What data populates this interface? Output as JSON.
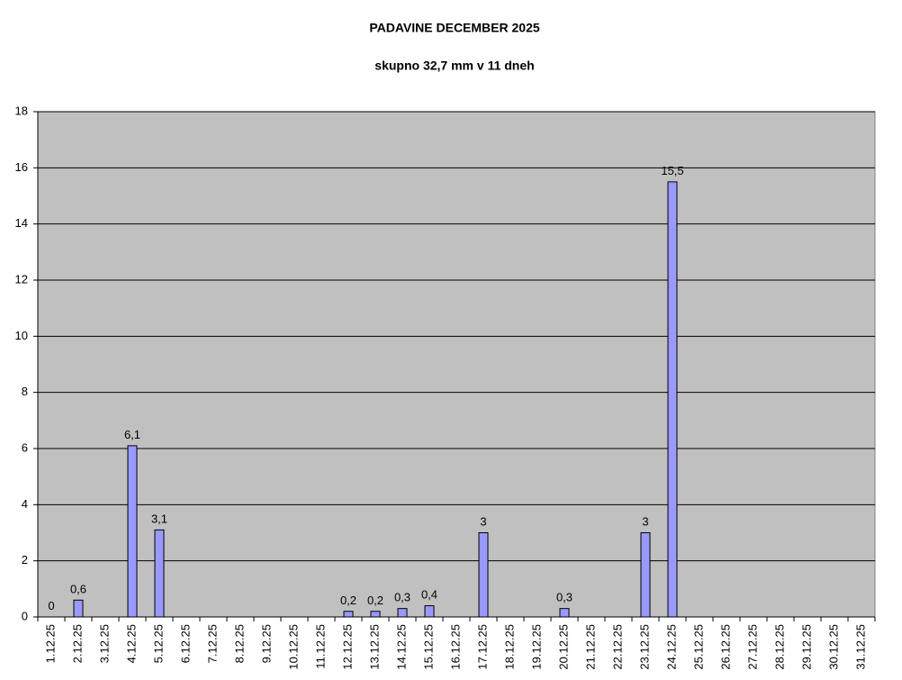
{
  "chart_data": {
    "type": "bar",
    "title": "PADAVINE DECEMBER 2025",
    "subtitle": "skupno 32,7 mm v 11 dneh",
    "categories": [
      "1.12.25",
      "2.12.25",
      "3.12.25",
      "4.12.25",
      "5.12.25",
      "6.12.25",
      "7.12.25",
      "8.12.25",
      "9.12.25",
      "10.12.25",
      "11.12.25",
      "12.12.25",
      "13.12.25",
      "14.12.25",
      "15.12.25",
      "16.12.25",
      "17.12.25",
      "18.12.25",
      "19.12.25",
      "20.12.25",
      "21.12.25",
      "22.12.25",
      "23.12.25",
      "24.12.25",
      "25.12.25",
      "26.12.25",
      "27.12.25",
      "28.12.25",
      "29.12.25",
      "30.12.25",
      "31.12.25"
    ],
    "values": [
      0,
      0.6,
      null,
      6.1,
      3.1,
      null,
      null,
      null,
      null,
      null,
      null,
      0.2,
      0.2,
      0.3,
      0.4,
      null,
      3,
      null,
      null,
      0.3,
      null,
      null,
      3,
      15.5,
      null,
      null,
      null,
      null,
      null,
      null,
      null
    ],
    "value_labels": [
      "0",
      "0,6",
      null,
      "6,1",
      "3,1",
      null,
      null,
      null,
      null,
      null,
      null,
      "0,2",
      "0,2",
      "0,3",
      "0,4",
      null,
      "3",
      null,
      null,
      "0,3",
      null,
      null,
      "3",
      "15,5",
      null,
      null,
      null,
      null,
      null,
      null,
      null
    ],
    "color": "#9999ff",
    "plot_background": "#c0c0c0",
    "ylim": [
      0,
      18
    ],
    "yticks": [
      0,
      2,
      4,
      6,
      8,
      10,
      12,
      14,
      16,
      18
    ],
    "grid": true
  }
}
